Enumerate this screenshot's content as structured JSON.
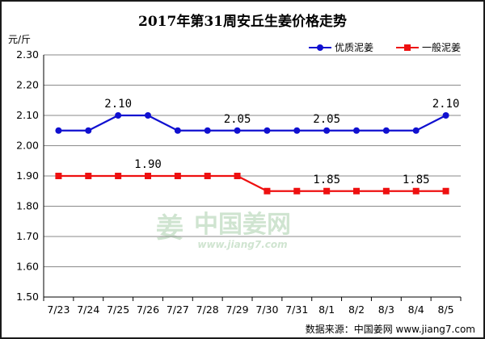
{
  "chart_data": {
    "type": "line",
    "title": "2017年第31周安丘生姜价格走势",
    "ylabel": "元/斤",
    "categories": [
      "7/23",
      "7/24",
      "7/25",
      "7/26",
      "7/27",
      "7/28",
      "7/29",
      "7/30",
      "7/31",
      "8/1",
      "8/2",
      "8/3",
      "8/4",
      "8/5"
    ],
    "yticks": [
      "1.50",
      "1.60",
      "1.70",
      "1.80",
      "1.90",
      "2.00",
      "2.10",
      "2.20",
      "2.30"
    ],
    "ylim": [
      1.5,
      2.3
    ],
    "grid": "horizontal",
    "legend_position": "top-right",
    "series": [
      {
        "name": "优质泥姜",
        "color": "#1010d0",
        "marker": "circle",
        "values": [
          2.05,
          2.05,
          2.1,
          2.1,
          2.05,
          2.05,
          2.05,
          2.05,
          2.05,
          2.05,
          2.05,
          2.05,
          2.05,
          2.1
        ],
        "data_labels": [
          {
            "index": 2,
            "text": "2.10"
          },
          {
            "index": 6,
            "text": "2.05"
          },
          {
            "index": 9,
            "text": "2.05"
          },
          {
            "index": 13,
            "text": "2.10"
          }
        ]
      },
      {
        "name": "一般泥姜",
        "color": "#ee1010",
        "marker": "square",
        "values": [
          1.9,
          1.9,
          1.9,
          1.9,
          1.9,
          1.9,
          1.9,
          1.85,
          1.85,
          1.85,
          1.85,
          1.85,
          1.85,
          1.85
        ],
        "data_labels": [
          {
            "index": 3,
            "text": "1.90"
          },
          {
            "index": 9,
            "text": "1.85"
          },
          {
            "index": 12,
            "text": "1.85"
          }
        ]
      }
    ],
    "watermark": {
      "main": "中国姜网",
      "sub": "www.jiang7.com"
    },
    "source": "数据来源：中国姜网 www.jiang7.com"
  }
}
